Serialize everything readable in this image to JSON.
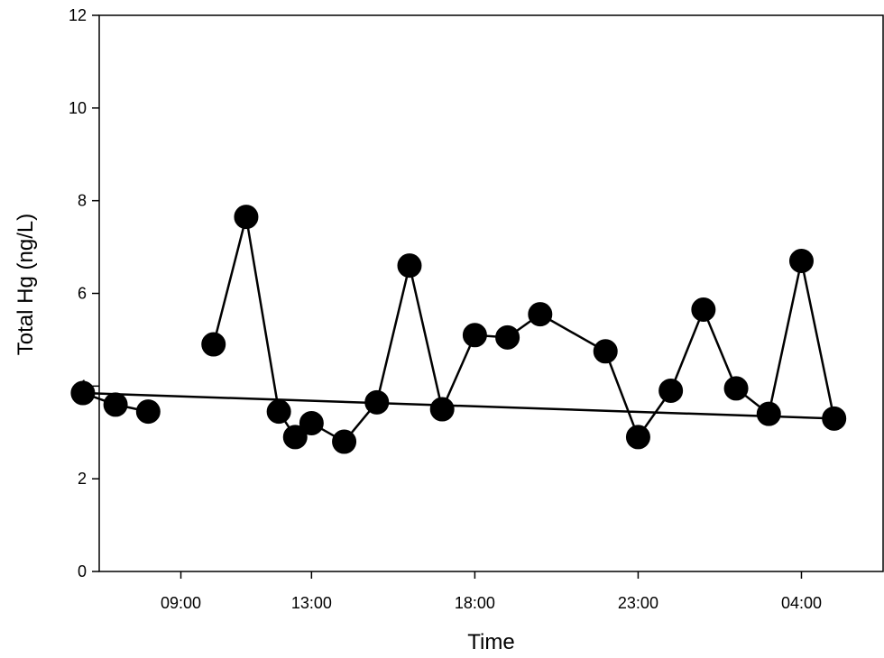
{
  "chart_data": {
    "type": "line",
    "title": "",
    "xlabel": "Time",
    "ylabel": "Total Hg (ng/L)",
    "ylim": [
      0,
      12
    ],
    "yticks": [
      0,
      2,
      4,
      6,
      8,
      10,
      12
    ],
    "xlim": [
      "06:30",
      "06:30 (+1 day)"
    ],
    "xticks": [
      "09:00",
      "13:00",
      "18:00",
      "23:00",
      "04:00",
      "09:00"
    ],
    "grid": false,
    "legend": "none",
    "marker_color": "#000000",
    "line_color": "#000000",
    "series": [
      {
        "x": [
          "10:00",
          "11:00",
          "12:00",
          "12:30",
          "13:00",
          "14:00",
          "15:00",
          "16:00",
          "17:00",
          "18:00",
          "19:00",
          "20:00",
          "22:00",
          "23:00",
          "24:00",
          "01:00",
          "02:00",
          "03:00",
          "04:00",
          "05:00",
          "06:00",
          "07:00",
          "08:00"
        ],
        "y": [
          4.9,
          7.65,
          3.45,
          2.9,
          3.2,
          2.8,
          3.65,
          6.6,
          3.5,
          5.1,
          5.05,
          5.55,
          4.75,
          2.9,
          3.9,
          5.65,
          3.95,
          3.4,
          6.7,
          3.3,
          3.85,
          3.6,
          3.45
        ]
      }
    ]
  }
}
